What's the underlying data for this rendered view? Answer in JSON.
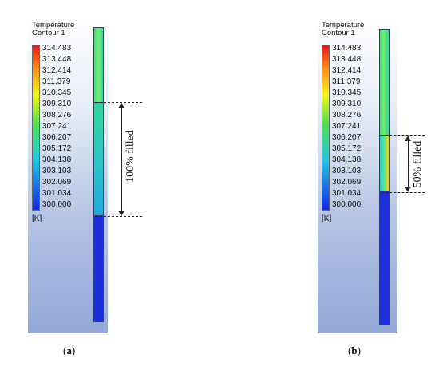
{
  "panels": [
    {
      "title_line1": "Temperature",
      "title_line2": "Contour 1",
      "levels": [
        "314.483",
        "313.448",
        "312.414",
        "311.379",
        "310.345",
        "309.310",
        "308.276",
        "307.241",
        "306.207",
        "305.172",
        "304.138",
        "303.103",
        "302.069",
        "301.034",
        "300.000"
      ],
      "unit": "[K]",
      "annotation": "100% filled",
      "fill_fraction": 1.0,
      "caption_open": "(",
      "caption_letter": "a",
      "caption_close": ")"
    },
    {
      "title_line1": "Temperature",
      "title_line2": "Contour 1",
      "levels": [
        "314.483",
        "313.448",
        "312.414",
        "311.379",
        "310.345",
        "309.310",
        "308.276",
        "307.241",
        "306.207",
        "305.172",
        "304.138",
        "303.103",
        "302.069",
        "301.034",
        "300.000"
      ],
      "unit": "[K]",
      "annotation": "50% filled",
      "fill_fraction": 0.5,
      "caption_open": "(",
      "caption_letter": "b",
      "caption_close": ")"
    }
  ],
  "colors": {
    "colorbar_top": "#e8141c",
    "colorbar_orange": "#ff8c1a",
    "colorbar_yellow": "#f5f51e",
    "colorbar_green": "#4ee04e",
    "colorbar_cyan": "#22c7e3",
    "colorbar_bottom": "#1226e6"
  }
}
